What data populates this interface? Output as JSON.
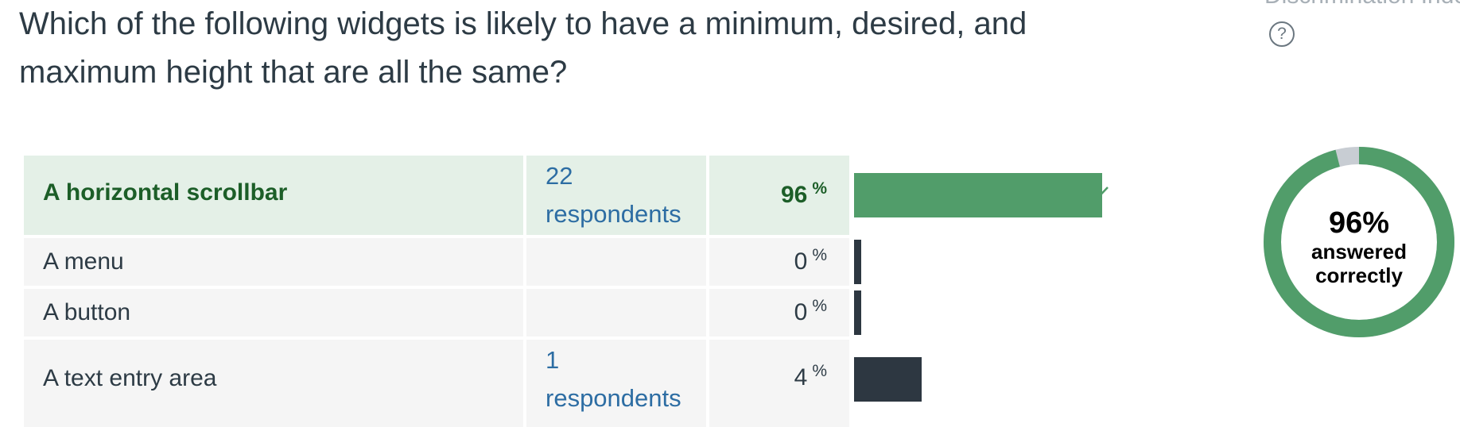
{
  "question": {
    "text": "Which of the following widgets is likely to have a minimum, desired, and maximum height that are all the same?"
  },
  "discrimination": {
    "label": "Discrimination Index",
    "help_glyph": "?"
  },
  "answers": [
    {
      "label": "A horizontal scrollbar",
      "respondents_count": "22",
      "respondents_word": "respondents",
      "percent": "96",
      "percent_sign": "%",
      "correct": true,
      "fraction": 0.96
    },
    {
      "label": "A menu",
      "respondents_count": "",
      "respondents_word": "",
      "percent": "0",
      "percent_sign": "%",
      "correct": false,
      "fraction": 0
    },
    {
      "label": "A button",
      "respondents_count": "",
      "respondents_word": "",
      "percent": "0",
      "percent_sign": "%",
      "correct": false,
      "fraction": 0
    },
    {
      "label": "A text entry area",
      "respondents_count": "1",
      "respondents_word": "respondents",
      "percent": "4",
      "percent_sign": "%",
      "correct": false,
      "fraction": 0.04
    }
  ],
  "summary": {
    "percent_text": "96%",
    "label_line1": "answered",
    "label_line2": "correctly",
    "fraction_correct": 0.96
  },
  "colors": {
    "correct_green": "#519d6a",
    "incorrect_dark": "#2d3741",
    "donut_remainder": "#c8cdd3",
    "link_blue": "#2d6da3"
  }
}
